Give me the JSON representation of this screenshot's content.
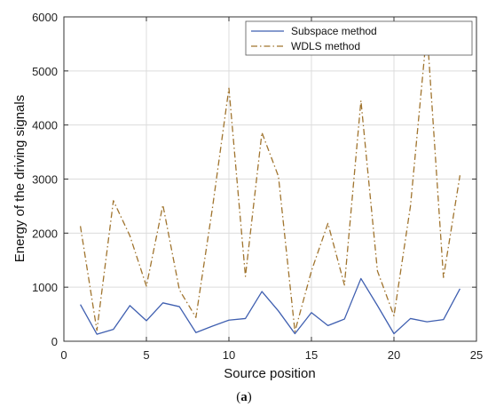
{
  "chart_data": {
    "type": "line",
    "xlabel": "Source position",
    "ylabel": "Energy of the driving signals",
    "xlim": [
      0,
      25
    ],
    "ylim": [
      0,
      6000
    ],
    "xticks": [
      0,
      5,
      10,
      15,
      20,
      25
    ],
    "yticks": [
      0,
      1000,
      2000,
      3000,
      4000,
      5000,
      6000
    ],
    "grid": true,
    "legend_position": "top-right",
    "x": [
      1,
      2,
      3,
      4,
      5,
      6,
      7,
      8,
      9,
      10,
      11,
      12,
      13,
      14,
      15,
      16,
      17,
      18,
      19,
      20,
      21,
      22,
      23,
      24
    ],
    "series": [
      {
        "name": "Subspace method",
        "color": "#3f5fb0",
        "style": "solid",
        "values": [
          680,
          130,
          220,
          660,
          380,
          710,
          640,
          160,
          280,
          390,
          420,
          920,
          560,
          140,
          530,
          290,
          410,
          1160,
          660,
          140,
          420,
          360,
          400,
          970
        ]
      },
      {
        "name": "WDLS method",
        "color": "#a0742e",
        "style": "dashdot",
        "values": [
          2130,
          200,
          2600,
          1950,
          1020,
          2520,
          950,
          440,
          2460,
          4680,
          1200,
          3860,
          3050,
          180,
          1300,
          2180,
          1040,
          4450,
          1300,
          470,
          2500,
          5760,
          1180,
          3070
        ]
      }
    ]
  },
  "caption": {
    "open": "(",
    "letter": "a",
    "close": ")"
  }
}
